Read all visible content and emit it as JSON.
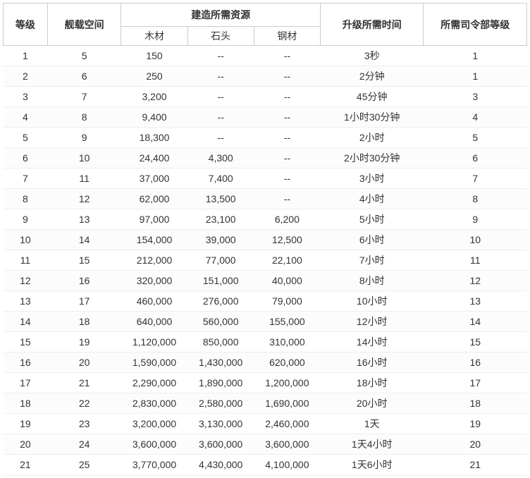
{
  "table": {
    "headers": {
      "level": "等级",
      "shipSpace": "舰载空间",
      "resourcesGroup": "建造所需资源",
      "wood": "木材",
      "stone": "石头",
      "steel": "钢材",
      "upgradeTime": "升级所需时间",
      "hqLevel": "所需司令部等级"
    },
    "rows": [
      {
        "level": "1",
        "space": "5",
        "wood": "150",
        "stone": "--",
        "steel": "--",
        "time": "3秒",
        "hq": "1"
      },
      {
        "level": "2",
        "space": "6",
        "wood": "250",
        "stone": "--",
        "steel": "--",
        "time": "2分钟",
        "hq": "1"
      },
      {
        "level": "3",
        "space": "7",
        "wood": "3,200",
        "stone": "--",
        "steel": "--",
        "time": "45分钟",
        "hq": "3"
      },
      {
        "level": "4",
        "space": "8",
        "wood": "9,400",
        "stone": "--",
        "steel": "--",
        "time": "1小时30分钟",
        "hq": "4"
      },
      {
        "level": "5",
        "space": "9",
        "wood": "18,300",
        "stone": "--",
        "steel": "--",
        "time": "2小时",
        "hq": "5"
      },
      {
        "level": "6",
        "space": "10",
        "wood": "24,400",
        "stone": "4,300",
        "steel": "--",
        "time": "2小时30分钟",
        "hq": "6"
      },
      {
        "level": "7",
        "space": "11",
        "wood": "37,000",
        "stone": "7,400",
        "steel": "--",
        "time": "3小时",
        "hq": "7"
      },
      {
        "level": "8",
        "space": "12",
        "wood": "62,000",
        "stone": "13,500",
        "steel": "--",
        "time": "4小时",
        "hq": "8"
      },
      {
        "level": "9",
        "space": "13",
        "wood": "97,000",
        "stone": "23,100",
        "steel": "6,200",
        "time": "5小时",
        "hq": "9"
      },
      {
        "level": "10",
        "space": "14",
        "wood": "154,000",
        "stone": "39,000",
        "steel": "12,500",
        "time": "6小时",
        "hq": "10"
      },
      {
        "level": "11",
        "space": "15",
        "wood": "212,000",
        "stone": "77,000",
        "steel": "22,100",
        "time": "7小时",
        "hq": "11"
      },
      {
        "level": "12",
        "space": "16",
        "wood": "320,000",
        "stone": "151,000",
        "steel": "40,000",
        "time": "8小时",
        "hq": "12"
      },
      {
        "level": "13",
        "space": "17",
        "wood": "460,000",
        "stone": "276,000",
        "steel": "79,000",
        "time": "10小时",
        "hq": "13"
      },
      {
        "level": "14",
        "space": "18",
        "wood": "640,000",
        "stone": "560,000",
        "steel": "155,000",
        "time": "12小时",
        "hq": "14"
      },
      {
        "level": "15",
        "space": "19",
        "wood": "1,120,000",
        "stone": "850,000",
        "steel": "310,000",
        "time": "14小时",
        "hq": "15"
      },
      {
        "level": "16",
        "space": "20",
        "wood": "1,590,000",
        "stone": "1,430,000",
        "steel": "620,000",
        "time": "16小时",
        "hq": "16"
      },
      {
        "level": "17",
        "space": "21",
        "wood": "2,290,000",
        "stone": "1,890,000",
        "steel": "1,200,000",
        "time": "18小时",
        "hq": "17"
      },
      {
        "level": "18",
        "space": "22",
        "wood": "2,830,000",
        "stone": "2,580,000",
        "steel": "1,690,000",
        "time": "20小时",
        "hq": "18"
      },
      {
        "level": "19",
        "space": "23",
        "wood": "3,200,000",
        "stone": "3,130,000",
        "steel": "2,460,000",
        "time": "1天",
        "hq": "19"
      },
      {
        "level": "20",
        "space": "24",
        "wood": "3,600,000",
        "stone": "3,600,000",
        "steel": "3,600,000",
        "time": "1天4小时",
        "hq": "20"
      },
      {
        "level": "21",
        "space": "25",
        "wood": "3,770,000",
        "stone": "4,430,000",
        "steel": "4,100,000",
        "time": "1天6小时",
        "hq": "21"
      }
    ],
    "styling": {
      "border_color": "#cccccc",
      "row_border_color": "#eeeeee",
      "text_color": "#333333",
      "background_color": "#ffffff",
      "font_size": 14,
      "header_font_weight": "bold"
    }
  }
}
